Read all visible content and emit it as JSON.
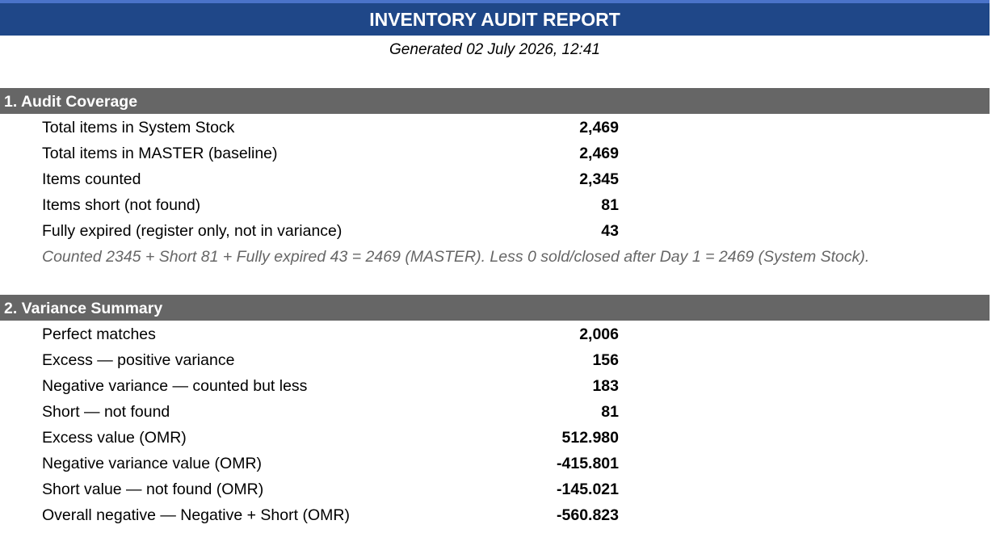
{
  "report": {
    "title": "INVENTORY AUDIT REPORT",
    "generated": "Generated 02 July 2026, 12:41"
  },
  "section1": {
    "header": "1. Audit Coverage",
    "rows": [
      {
        "label": "Total items in System Stock",
        "value": "2,469"
      },
      {
        "label": "Total items in MASTER (baseline)",
        "value": "2,469"
      },
      {
        "label": "Items counted",
        "value": "2,345"
      },
      {
        "label": "Items short (not found)",
        "value": "81"
      },
      {
        "label": "Fully expired (register only, not in variance)",
        "value": "43"
      }
    ],
    "note": "Counted 2345 + Short 81 + Fully expired 43 = 2469 (MASTER).  Less 0 sold/closed after Day 1 = 2469 (System Stock)."
  },
  "section2": {
    "header": "2. Variance Summary",
    "rows": [
      {
        "label": "Perfect matches",
        "value": "2,006"
      },
      {
        "label": "Excess — positive variance",
        "value": "156"
      },
      {
        "label": "Negative variance — counted but less",
        "value": "183"
      },
      {
        "label": "Short — not found",
        "value": "81"
      },
      {
        "label": "Excess value (OMR)",
        "value": "512.980"
      },
      {
        "label": "Negative variance value (OMR)",
        "value": "-415.801"
      },
      {
        "label": "Short value — not found (OMR)",
        "value": "-145.021"
      },
      {
        "label": "Overall negative — Negative + Short (OMR)",
        "value": "-560.823"
      }
    ]
  },
  "colors": {
    "title_bar": "#1f4788",
    "section_header": "#666666",
    "note_text": "#666666"
  }
}
